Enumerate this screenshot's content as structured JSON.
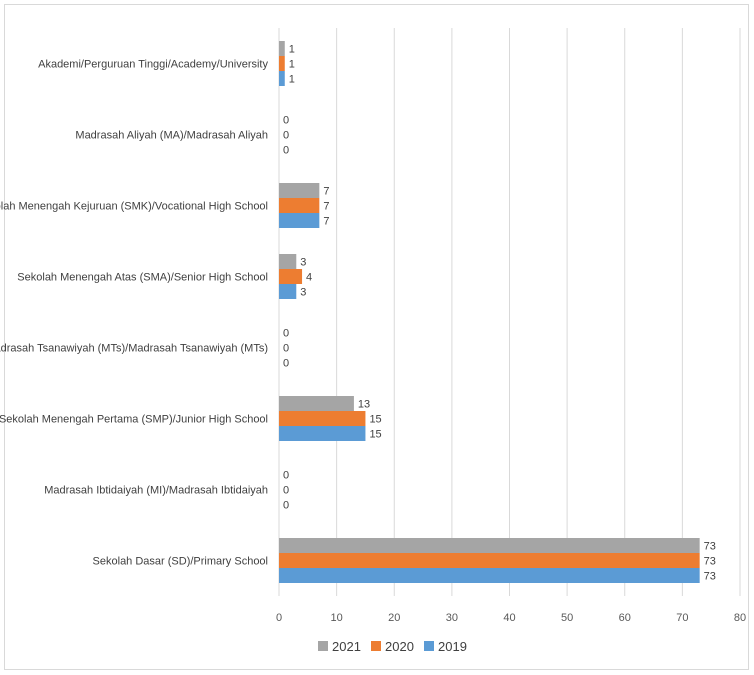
{
  "chart_data": {
    "type": "bar",
    "orientation": "horizontal",
    "categories": [
      "Akademi/Perguruan Tinggi/Academy/University",
      "Madrasah Aliyah (MA)/Madrasah Aliyah",
      "Sekolah Menengah Kejuruan (SMK)/Vocational High School",
      "Sekolah Menengah Atas (SMA)/Senior High School",
      "Madrasah Tsanawiyah (MTs)/Madrasah Tsanawiyah (MTs)",
      "Sekolah Menengah Pertama (SMP)/Junior High School",
      "Madrasah Ibtidaiyah (MI)/Madrasah Ibtidaiyah",
      "Sekolah Dasar (SD)/Primary School"
    ],
    "series": [
      {
        "name": "2021",
        "color": "#a5a5a5",
        "values": [
          1,
          0,
          7,
          3,
          0,
          13,
          0,
          73
        ]
      },
      {
        "name": "2020",
        "color": "#ed7d31",
        "values": [
          1,
          0,
          7,
          4,
          0,
          15,
          0,
          73
        ]
      },
      {
        "name": "2019",
        "color": "#5b9bd5",
        "values": [
          1,
          0,
          7,
          3,
          0,
          15,
          0,
          73
        ]
      }
    ],
    "xlim": [
      0,
      80
    ],
    "xticks": [
      "0",
      "10",
      "20",
      "30",
      "40",
      "50",
      "60",
      "70",
      "80"
    ],
    "grid": true,
    "data_labels": true,
    "legend_position": "bottom"
  }
}
